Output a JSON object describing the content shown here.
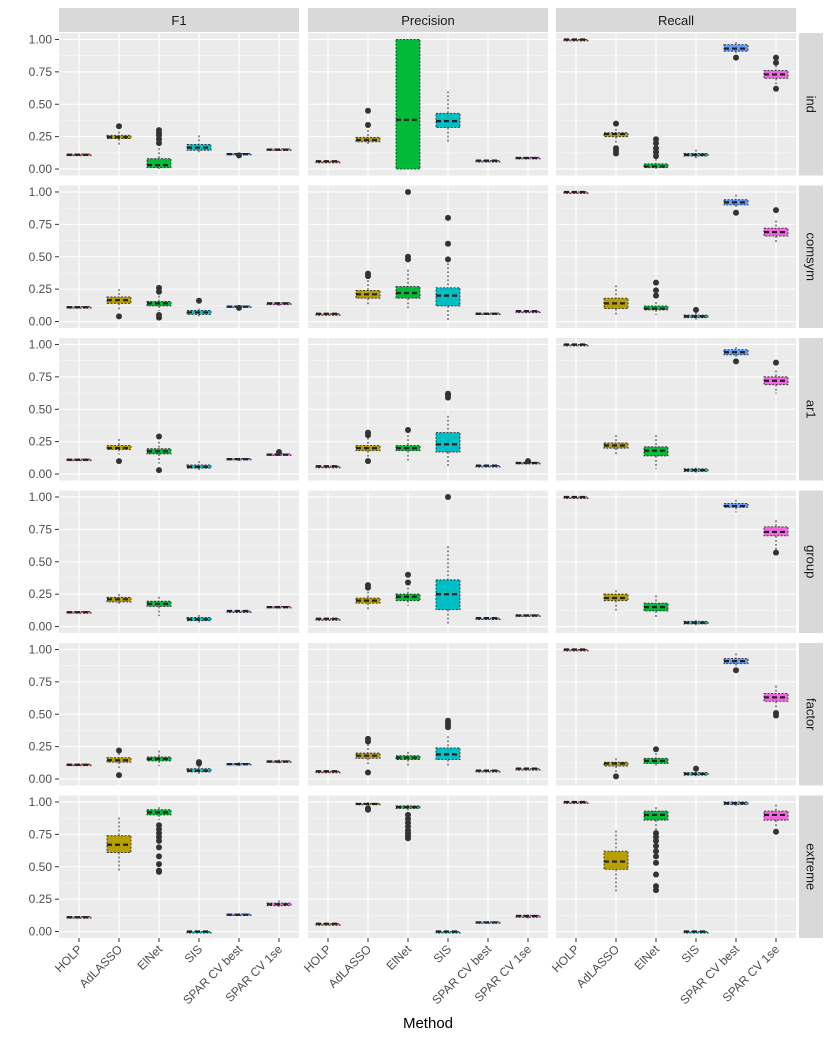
{
  "chart_data": {
    "type": "boxplot",
    "xlabel": "Method",
    "ylabel": "",
    "ylim": [
      -0.05,
      1.05
    ],
    "yticks": [
      "0.00",
      "0.25",
      "0.50",
      "0.75",
      "1.00"
    ],
    "methods": [
      "HOLP",
      "AdLASSO",
      "ElNet",
      "SIS",
      "SPAR CV best",
      "SPAR CV 1se"
    ],
    "metrics": [
      "F1",
      "Precision",
      "Recall"
    ],
    "scenarios": [
      "ind",
      "comsym",
      "ar1",
      "group",
      "factor",
      "extreme"
    ],
    "colors": {
      "HOLP": "#f8766d",
      "AdLASSO": "#b79f00",
      "ElNet": "#00ba38",
      "SIS": "#00bfc4",
      "SPAR CV best": "#619cff",
      "SPAR CV 1se": "#f564e3"
    },
    "note": "each box: [method index, lower whisker, Q1, median, Q3, upper whisker, outliers]",
    "panels": {
      "ind": {
        "F1": [
          [
            0,
            0.11,
            0.11,
            0.11,
            0.115,
            0.115,
            []
          ],
          [
            1,
            0.18,
            0.235,
            0.245,
            0.26,
            0.29,
            [
              0.33
            ]
          ],
          [
            2,
            0,
            0.01,
            0.03,
            0.08,
            0.16,
            [
              0.2,
              0.23,
              0.26,
              0.28,
              0.3
            ]
          ],
          [
            3,
            0.12,
            0.145,
            0.165,
            0.19,
            0.26,
            []
          ],
          [
            4,
            0.1,
            0.11,
            0.115,
            0.12,
            0.125,
            [
              0.105
            ]
          ],
          [
            5,
            0.14,
            0.145,
            0.15,
            0.155,
            0.16,
            []
          ]
        ],
        "Precision": [
          [
            0,
            0.06,
            0.06,
            0.06,
            0.06,
            0.06,
            []
          ],
          [
            1,
            0.18,
            0.21,
            0.225,
            0.245,
            0.3,
            [
              0.34,
              0.45
            ]
          ],
          [
            2,
            0,
            0,
            0.38,
            1,
            1,
            []
          ],
          [
            3,
            0.2,
            0.32,
            0.37,
            0.43,
            0.6,
            []
          ],
          [
            4,
            0.055,
            0.06,
            0.065,
            0.065,
            0.07,
            []
          ],
          [
            5,
            0.08,
            0.085,
            0.085,
            0.09,
            0.09,
            []
          ]
        ],
        "Recall": [
          [
            0,
            1,
            1,
            1,
            1,
            1,
            []
          ],
          [
            1,
            0.2,
            0.25,
            0.27,
            0.28,
            0.31,
            [
              0.12,
              0.14,
              0.16,
              0.35
            ]
          ],
          [
            2,
            0,
            0.01,
            0.02,
            0.04,
            0.08,
            [
              0.1,
              0.13,
              0.16,
              0.2,
              0.23
            ]
          ],
          [
            3,
            0.08,
            0.1,
            0.11,
            0.12,
            0.15,
            []
          ],
          [
            4,
            0.88,
            0.91,
            0.93,
            0.96,
            0.98,
            [
              0.86
            ]
          ],
          [
            5,
            0.64,
            0.7,
            0.73,
            0.76,
            0.8,
            [
              0.62,
              0.82,
              0.86
            ]
          ]
        ]
      },
      "comsym": {
        "F1": [
          [
            0,
            0.11,
            0.11,
            0.11,
            0.115,
            0.115,
            []
          ],
          [
            1,
            0.08,
            0.14,
            0.165,
            0.19,
            0.25,
            [
              0.04
            ]
          ],
          [
            2,
            0.08,
            0.12,
            0.14,
            0.155,
            0.2,
            [
              0.03,
              0.05,
              0.23,
              0.26
            ]
          ],
          [
            3,
            0.04,
            0.055,
            0.07,
            0.085,
            0.1,
            [
              0.16
            ]
          ],
          [
            4,
            0.1,
            0.11,
            0.115,
            0.12,
            0.125,
            [
              0.105
            ]
          ],
          [
            5,
            0.12,
            0.13,
            0.14,
            0.145,
            0.15,
            []
          ]
        ],
        "Precision": [
          [
            0,
            0.06,
            0.06,
            0.06,
            0.06,
            0.06,
            []
          ],
          [
            1,
            0.12,
            0.18,
            0.21,
            0.24,
            0.32,
            [
              0.35,
              0.37
            ]
          ],
          [
            2,
            0.1,
            0.18,
            0.22,
            0.27,
            0.4,
            [
              0.48,
              0.5,
              1
            ]
          ],
          [
            3,
            0.01,
            0.12,
            0.2,
            0.26,
            0.45,
            [
              0.48,
              0.6,
              0.8
            ]
          ],
          [
            4,
            0.055,
            0.06,
            0.06,
            0.065,
            0.07,
            []
          ],
          [
            5,
            0.07,
            0.075,
            0.08,
            0.08,
            0.085,
            []
          ]
        ],
        "Recall": [
          [
            0,
            1,
            1,
            1,
            1,
            1,
            []
          ],
          [
            1,
            0.04,
            0.1,
            0.14,
            0.18,
            0.28,
            []
          ],
          [
            2,
            0.05,
            0.09,
            0.1,
            0.12,
            0.15,
            [
              0.2,
              0.24,
              0.3
            ]
          ],
          [
            3,
            0.01,
            0.03,
            0.04,
            0.05,
            0.07,
            [
              0.09
            ]
          ],
          [
            4,
            0.88,
            0.9,
            0.92,
            0.94,
            0.98,
            [
              0.84
            ]
          ],
          [
            5,
            0.6,
            0.66,
            0.69,
            0.72,
            0.78,
            [
              0.86
            ]
          ]
        ]
      },
      "ar1": {
        "F1": [
          [
            0,
            0.11,
            0.11,
            0.11,
            0.115,
            0.115,
            []
          ],
          [
            1,
            0.15,
            0.19,
            0.2,
            0.22,
            0.27,
            [
              0.1
            ]
          ],
          [
            2,
            0.08,
            0.155,
            0.175,
            0.195,
            0.25,
            [
              0.03,
              0.29
            ]
          ],
          [
            3,
            0.03,
            0.045,
            0.055,
            0.07,
            0.1,
            []
          ],
          [
            4,
            0.1,
            0.11,
            0.115,
            0.12,
            0.125,
            []
          ],
          [
            5,
            0.14,
            0.145,
            0.15,
            0.155,
            0.16,
            [
              0.17
            ]
          ]
        ],
        "Precision": [
          [
            0,
            0.06,
            0.06,
            0.06,
            0.06,
            0.06,
            []
          ],
          [
            1,
            0.12,
            0.18,
            0.2,
            0.22,
            0.28,
            [
              0.1,
              0.3,
              0.32
            ]
          ],
          [
            2,
            0.1,
            0.18,
            0.2,
            0.22,
            0.3,
            [
              0.34
            ]
          ],
          [
            3,
            0.05,
            0.17,
            0.23,
            0.32,
            0.45,
            [
              0.59,
              0.61,
              0.62
            ]
          ],
          [
            4,
            0.055,
            0.06,
            0.065,
            0.065,
            0.07,
            []
          ],
          [
            5,
            0.08,
            0.085,
            0.085,
            0.09,
            0.09,
            [
              0.1
            ]
          ]
        ],
        "Recall": [
          [
            0,
            1,
            1,
            1,
            1,
            1,
            []
          ],
          [
            1,
            0.14,
            0.2,
            0.22,
            0.24,
            0.3,
            []
          ],
          [
            2,
            0.04,
            0.14,
            0.18,
            0.21,
            0.3,
            []
          ],
          [
            3,
            0.01,
            0.02,
            0.03,
            0.04,
            0.05,
            []
          ],
          [
            4,
            0.88,
            0.92,
            0.94,
            0.96,
            0.98,
            [
              0.87
            ]
          ],
          [
            5,
            0.62,
            0.69,
            0.72,
            0.75,
            0.8,
            [
              0.86
            ]
          ]
        ]
      },
      "group": {
        "F1": [
          [
            0,
            0.11,
            0.11,
            0.11,
            0.115,
            0.115,
            []
          ],
          [
            1,
            0.16,
            0.19,
            0.21,
            0.225,
            0.25,
            []
          ],
          [
            2,
            0.08,
            0.155,
            0.175,
            0.195,
            0.23,
            []
          ],
          [
            3,
            0.03,
            0.045,
            0.055,
            0.07,
            0.09,
            []
          ],
          [
            4,
            0.12,
            0.12,
            0.12,
            0.12,
            0.12,
            []
          ],
          [
            5,
            0.14,
            0.145,
            0.15,
            0.155,
            0.16,
            []
          ]
        ],
        "Precision": [
          [
            0,
            0.06,
            0.06,
            0.06,
            0.06,
            0.06,
            []
          ],
          [
            1,
            0.13,
            0.18,
            0.2,
            0.22,
            0.27,
            [
              0.3,
              0.32
            ]
          ],
          [
            2,
            0.16,
            0.2,
            0.23,
            0.25,
            0.3,
            [
              0.34,
              0.4
            ]
          ],
          [
            3,
            0.01,
            0.13,
            0.25,
            0.36,
            0.62,
            [
              1
            ]
          ],
          [
            4,
            0.065,
            0.065,
            0.065,
            0.065,
            0.065,
            []
          ],
          [
            5,
            0.08,
            0.085,
            0.085,
            0.09,
            0.09,
            []
          ]
        ],
        "Recall": [
          [
            0,
            1,
            1,
            1,
            1,
            1,
            []
          ],
          [
            1,
            0.12,
            0.2,
            0.22,
            0.25,
            0.28,
            []
          ],
          [
            2,
            0.06,
            0.12,
            0.15,
            0.18,
            0.24,
            []
          ],
          [
            3,
            0.01,
            0.02,
            0.03,
            0.04,
            0.05,
            []
          ],
          [
            4,
            0.88,
            0.92,
            0.93,
            0.95,
            0.98,
            []
          ],
          [
            5,
            0.58,
            0.7,
            0.73,
            0.77,
            0.82,
            [
              0.57
            ]
          ]
        ]
      },
      "factor": {
        "F1": [
          [
            0,
            0.11,
            0.11,
            0.11,
            0.115,
            0.115,
            []
          ],
          [
            1,
            0.07,
            0.13,
            0.145,
            0.165,
            0.2,
            [
              0.03,
              0.22
            ]
          ],
          [
            2,
            0.1,
            0.14,
            0.155,
            0.17,
            0.22,
            []
          ],
          [
            3,
            0.04,
            0.055,
            0.065,
            0.08,
            0.1,
            [
              0.12,
              0.13
            ]
          ],
          [
            4,
            0.1,
            0.11,
            0.115,
            0.12,
            0.13,
            []
          ],
          [
            5,
            0.12,
            0.13,
            0.135,
            0.14,
            0.15,
            []
          ]
        ],
        "Precision": [
          [
            0,
            0.06,
            0.06,
            0.06,
            0.06,
            0.06,
            []
          ],
          [
            1,
            0.1,
            0.16,
            0.18,
            0.2,
            0.27,
            [
              0.05,
              0.29,
              0.31
            ]
          ],
          [
            2,
            0.1,
            0.15,
            0.165,
            0.18,
            0.21,
            []
          ],
          [
            3,
            0.1,
            0.15,
            0.19,
            0.24,
            0.33,
            [
              0.4,
              0.42,
              0.44,
              0.45
            ]
          ],
          [
            4,
            0.055,
            0.06,
            0.065,
            0.065,
            0.07,
            []
          ],
          [
            5,
            0.07,
            0.075,
            0.08,
            0.08,
            0.085,
            []
          ]
        ],
        "Recall": [
          [
            0,
            1,
            1,
            1,
            1,
            1,
            []
          ],
          [
            1,
            0.05,
            0.1,
            0.12,
            0.13,
            0.16,
            [
              0.02
            ]
          ],
          [
            2,
            0.09,
            0.12,
            0.14,
            0.16,
            0.2,
            [
              0.23
            ]
          ],
          [
            3,
            0.02,
            0.03,
            0.04,
            0.05,
            0.06,
            [
              0.08
            ]
          ],
          [
            4,
            0.86,
            0.89,
            0.91,
            0.93,
            0.97,
            [
              0.84
            ]
          ],
          [
            5,
            0.54,
            0.6,
            0.63,
            0.66,
            0.72,
            [
              0.49,
              0.51
            ]
          ]
        ]
      },
      "extreme": {
        "F1": [
          [
            0,
            0.11,
            0.11,
            0.11,
            0.115,
            0.115,
            []
          ],
          [
            1,
            0.46,
            0.61,
            0.67,
            0.74,
            0.88,
            []
          ],
          [
            2,
            0.86,
            0.9,
            0.92,
            0.94,
            0.96,
            [
              0.46,
              0.47,
              0.52,
              0.58,
              0.65,
              0.7,
              0.73,
              0.76,
              0.79,
              0.82
            ]
          ],
          [
            3,
            0,
            0,
            0,
            0,
            0,
            []
          ],
          [
            4,
            0.12,
            0.125,
            0.13,
            0.135,
            0.14,
            []
          ],
          [
            5,
            0.19,
            0.2,
            0.21,
            0.22,
            0.24,
            []
          ]
        ],
        "Precision": [
          [
            0,
            0.06,
            0.06,
            0.06,
            0.06,
            0.06,
            []
          ],
          [
            1,
            0.97,
            0.98,
            0.985,
            0.99,
            1,
            [
              0.94,
              0.95
            ]
          ],
          [
            2,
            0.93,
            0.95,
            0.96,
            0.97,
            0.98,
            [
              0.72,
              0.74,
              0.76,
              0.78,
              0.81,
              0.84,
              0.87,
              0.9
            ]
          ],
          [
            3,
            0,
            0,
            0,
            0,
            0,
            []
          ],
          [
            4,
            0.06,
            0.065,
            0.07,
            0.075,
            0.08,
            []
          ],
          [
            5,
            0.1,
            0.11,
            0.12,
            0.125,
            0.13,
            []
          ]
        ],
        "Recall": [
          [
            0,
            1,
            1,
            1,
            1,
            1,
            []
          ],
          [
            1,
            0.3,
            0.48,
            0.54,
            0.62,
            0.78,
            []
          ],
          [
            2,
            0.78,
            0.86,
            0.9,
            0.93,
            0.96,
            [
              0.32,
              0.35,
              0.44,
              0.53,
              0.58,
              0.62,
              0.66,
              0.7,
              0.73,
              0.76
            ]
          ],
          [
            3,
            0,
            0,
            0,
            0,
            0,
            []
          ],
          [
            4,
            0.97,
            0.98,
            0.99,
            1,
            1,
            []
          ],
          [
            5,
            0.8,
            0.86,
            0.9,
            0.93,
            0.98,
            [
              0.77
            ]
          ]
        ]
      }
    }
  }
}
